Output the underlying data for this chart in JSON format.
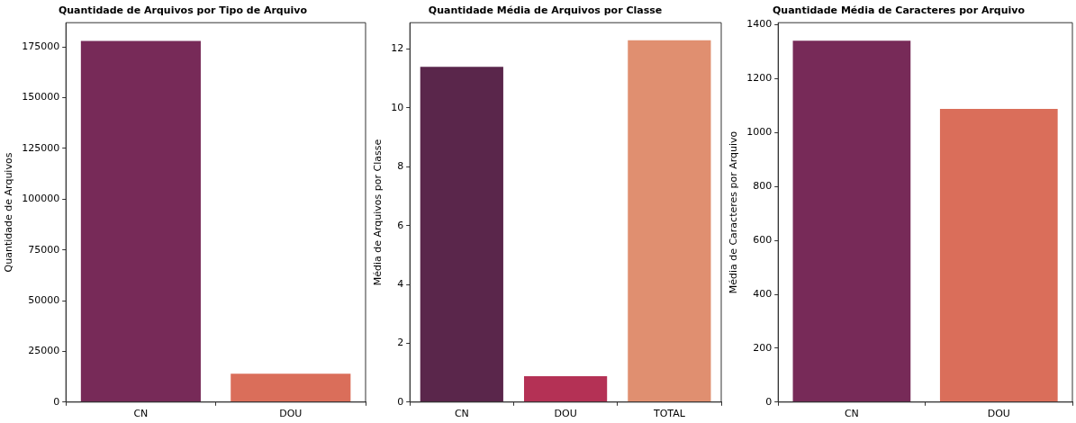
{
  "chart_data": [
    {
      "type": "bar",
      "title": "Quantidade de Arquivos por Tipo de Arquivo",
      "ylabel": "Quantidade de Arquivos",
      "categories": [
        "CN",
        "DOU"
      ],
      "values": [
        178000,
        14000
      ],
      "colors": [
        "#772a58",
        "#da6e5a"
      ],
      "ylim": [
        0,
        187000
      ],
      "yticks": [
        0,
        25000,
        50000,
        75000,
        100000,
        125000,
        150000,
        175000
      ],
      "grid": false
    },
    {
      "type": "bar",
      "title": "Quantidade Média de Arquivos por Classe",
      "ylabel": "Média de Arquivos por Classe",
      "categories": [
        "CN",
        "DOU",
        "TOTAL"
      ],
      "values": [
        11.4,
        0.88,
        12.3
      ],
      "colors": [
        "#5a264b",
        "#b43155",
        "#e08f70"
      ],
      "ylim": [
        0,
        12.9
      ],
      "yticks": [
        0,
        2,
        4,
        6,
        8,
        10,
        12
      ],
      "grid": false
    },
    {
      "type": "bar",
      "title": "Quantidade Média de Caracteres por Arquivo",
      "ylabel": "Média de Caracteres por Arquivo",
      "categories": [
        "CN",
        "DOU"
      ],
      "values": [
        1341,
        1088
      ],
      "colors": [
        "#772a58",
        "#da6e5a"
      ],
      "ylim": [
        0,
        1408
      ],
      "yticks": [
        0,
        200,
        400,
        600,
        800,
        1000,
        1200,
        1400
      ],
      "grid": false
    }
  ]
}
